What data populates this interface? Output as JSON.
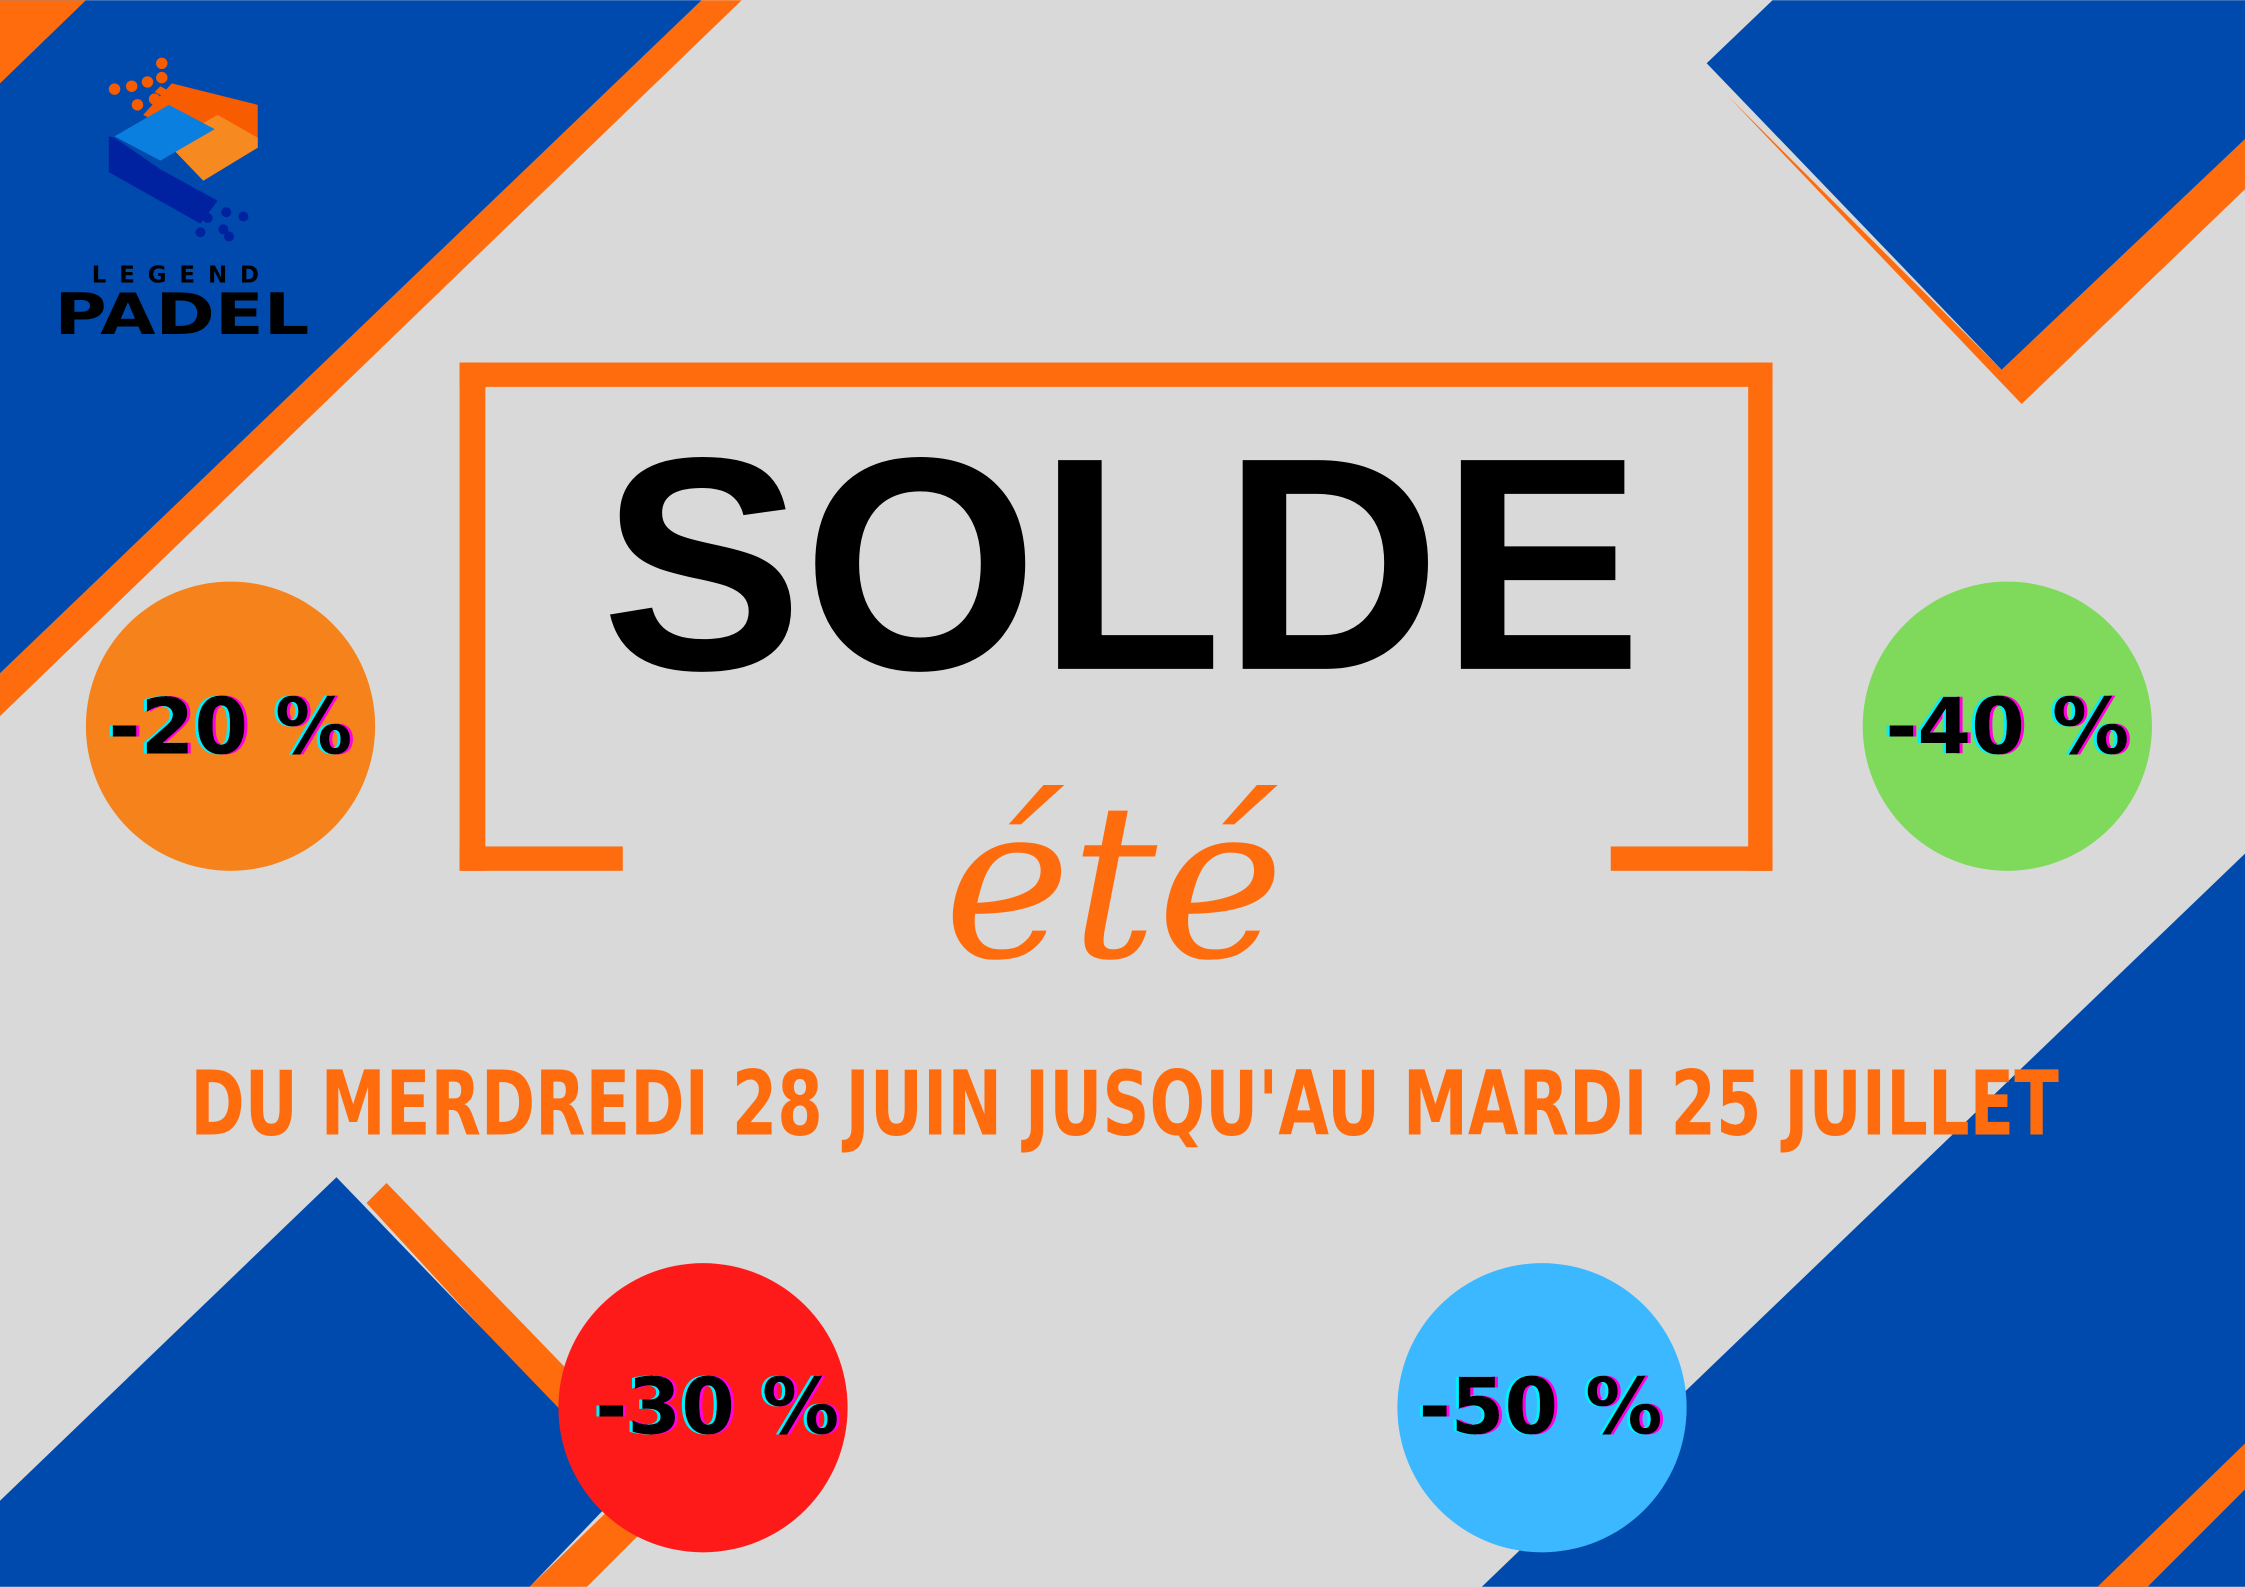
{
  "colors": {
    "background": "#d9d9d9",
    "blue": "#004aad",
    "orange": "#ff6c0e",
    "text": "#000000"
  },
  "logo": {
    "line1": "LEGEND",
    "line2": "PADEL"
  },
  "headline": "SOLDE",
  "subtitle": "été",
  "dates": "DU MERDREDI 28 JUIN JUSQU'AU MARDI 25 JUILLET",
  "discounts": [
    {
      "label": "-20 %",
      "color": "#f5821a"
    },
    {
      "label": "-40 %",
      "color": "#7fd95a"
    },
    {
      "label": "-30 %",
      "color": "#ff1a1a"
    },
    {
      "label": "-50 %",
      "color": "#3bb8ff"
    }
  ]
}
